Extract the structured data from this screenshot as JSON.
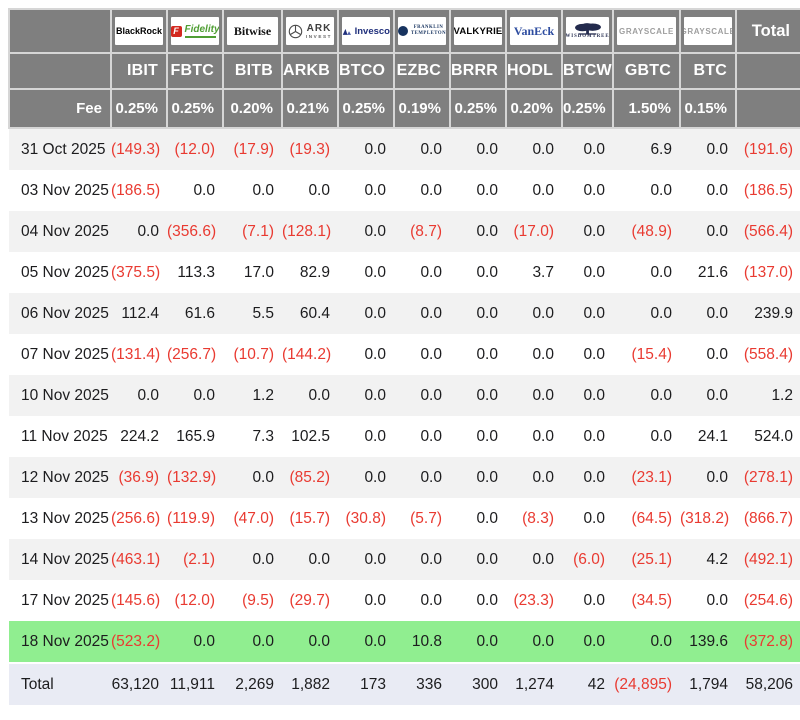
{
  "table": {
    "fee_label": "Fee",
    "total_label": "Total",
    "columns": [
      {
        "ticker": "IBIT",
        "fee": "0.25%",
        "issuer": "BlackRock"
      },
      {
        "ticker": "FBTC",
        "fee": "0.25%",
        "issuer": "Fidelity"
      },
      {
        "ticker": "BITB",
        "fee": "0.20%",
        "issuer": "Bitwise"
      },
      {
        "ticker": "ARKB",
        "fee": "0.21%",
        "issuer": "ARK Invest"
      },
      {
        "ticker": "BTCO",
        "fee": "0.25%",
        "issuer": "Invesco"
      },
      {
        "ticker": "EZBC",
        "fee": "0.19%",
        "issuer": "Franklin Templeton"
      },
      {
        "ticker": "BRRR",
        "fee": "0.25%",
        "issuer": "Valkyrie"
      },
      {
        "ticker": "HODL",
        "fee": "0.20%",
        "issuer": "VanEck"
      },
      {
        "ticker": "BTCW",
        "fee": "0.25%",
        "issuer": "WisdomTree"
      },
      {
        "ticker": "GBTC",
        "fee": "1.50%",
        "issuer": "Grayscale"
      },
      {
        "ticker": "BTC",
        "fee": "0.15%",
        "issuer": "Grayscale"
      }
    ],
    "rows": [
      {
        "date": "31 Oct 2025",
        "cells": [
          "(149.3)",
          "(12.0)",
          "(17.9)",
          "(19.3)",
          "0.0",
          "0.0",
          "0.0",
          "0.0",
          "0.0",
          "6.9",
          "0.0",
          "(191.6)"
        ],
        "highlight": false
      },
      {
        "date": "03 Nov 2025",
        "cells": [
          "(186.5)",
          "0.0",
          "0.0",
          "0.0",
          "0.0",
          "0.0",
          "0.0",
          "0.0",
          "0.0",
          "0.0",
          "0.0",
          "(186.5)"
        ],
        "highlight": false
      },
      {
        "date": "04 Nov 2025",
        "cells": [
          "0.0",
          "(356.6)",
          "(7.1)",
          "(128.1)",
          "0.0",
          "(8.7)",
          "0.0",
          "(17.0)",
          "0.0",
          "(48.9)",
          "0.0",
          "(566.4)"
        ],
        "highlight": false
      },
      {
        "date": "05 Nov 2025",
        "cells": [
          "(375.5)",
          "113.3",
          "17.0",
          "82.9",
          "0.0",
          "0.0",
          "0.0",
          "3.7",
          "0.0",
          "0.0",
          "21.6",
          "(137.0)"
        ],
        "highlight": false
      },
      {
        "date": "06 Nov 2025",
        "cells": [
          "112.4",
          "61.6",
          "5.5",
          "60.4",
          "0.0",
          "0.0",
          "0.0",
          "0.0",
          "0.0",
          "0.0",
          "0.0",
          "239.9"
        ],
        "highlight": false
      },
      {
        "date": "07 Nov 2025",
        "cells": [
          "(131.4)",
          "(256.7)",
          "(10.7)",
          "(144.2)",
          "0.0",
          "0.0",
          "0.0",
          "0.0",
          "0.0",
          "(15.4)",
          "0.0",
          "(558.4)"
        ],
        "highlight": false
      },
      {
        "date": "10 Nov 2025",
        "cells": [
          "0.0",
          "0.0",
          "1.2",
          "0.0",
          "0.0",
          "0.0",
          "0.0",
          "0.0",
          "0.0",
          "0.0",
          "0.0",
          "1.2"
        ],
        "highlight": false
      },
      {
        "date": "11 Nov 2025",
        "cells": [
          "224.2",
          "165.9",
          "7.3",
          "102.5",
          "0.0",
          "0.0",
          "0.0",
          "0.0",
          "0.0",
          "0.0",
          "24.1",
          "524.0"
        ],
        "highlight": false
      },
      {
        "date": "12 Nov 2025",
        "cells": [
          "(36.9)",
          "(132.9)",
          "0.0",
          "(85.2)",
          "0.0",
          "0.0",
          "0.0",
          "0.0",
          "0.0",
          "(23.1)",
          "0.0",
          "(278.1)"
        ],
        "highlight": false
      },
      {
        "date": "13 Nov 2025",
        "cells": [
          "(256.6)",
          "(119.9)",
          "(47.0)",
          "(15.7)",
          "(30.8)",
          "(5.7)",
          "0.0",
          "(8.3)",
          "0.0",
          "(64.5)",
          "(318.2)",
          "(866.7)"
        ],
        "highlight": false
      },
      {
        "date": "14 Nov 2025",
        "cells": [
          "(463.1)",
          "(2.1)",
          "0.0",
          "0.0",
          "0.0",
          "0.0",
          "0.0",
          "0.0",
          "(6.0)",
          "(25.1)",
          "4.2",
          "(492.1)"
        ],
        "highlight": false
      },
      {
        "date": "17 Nov 2025",
        "cells": [
          "(145.6)",
          "(12.0)",
          "(9.5)",
          "(29.7)",
          "0.0",
          "0.0",
          "0.0",
          "(23.3)",
          "0.0",
          "(34.5)",
          "0.0",
          "(254.6)"
        ],
        "highlight": false
      },
      {
        "date": "18 Nov 2025",
        "cells": [
          "(523.2)",
          "0.0",
          "0.0",
          "0.0",
          "0.0",
          "10.8",
          "0.0",
          "0.0",
          "0.0",
          "0.0",
          "139.6",
          "(372.8)"
        ],
        "highlight": true
      }
    ],
    "total_row": {
      "label": "Total",
      "cells": [
        "63,120",
        "11,911",
        "2,269",
        "1,882",
        "173",
        "336",
        "300",
        "1,274",
        "42",
        "(24,895)",
        "1,794",
        "58,206"
      ]
    }
  },
  "logos": {
    "blackrock": {
      "text": "BlackRock"
    },
    "fidelity": {
      "letter": "F",
      "text": "Fidelity"
    },
    "bitwise": {
      "text": "Bitwise"
    },
    "ark": {
      "line1": "ARK",
      "line2": "INVEST"
    },
    "invesco": {
      "text": "Invesco"
    },
    "franklin": {
      "line1": "FRANKLIN",
      "line2": "TEMPLETON"
    },
    "valkyrie": {
      "text": "VALKYRIE"
    },
    "vaneck": {
      "text": "VanEck"
    },
    "wisdomtree": {
      "text": "WISDOMTREE"
    },
    "grayscale": {
      "text": "GRAYSCALE"
    }
  },
  "colors": {
    "header_bg": "#7f7f7f",
    "stripe_bg": "#f2f2f2",
    "highlight_bg": "#90ee90",
    "total_row_bg": "#e9ebf4",
    "negative_text": "#e93a31"
  }
}
